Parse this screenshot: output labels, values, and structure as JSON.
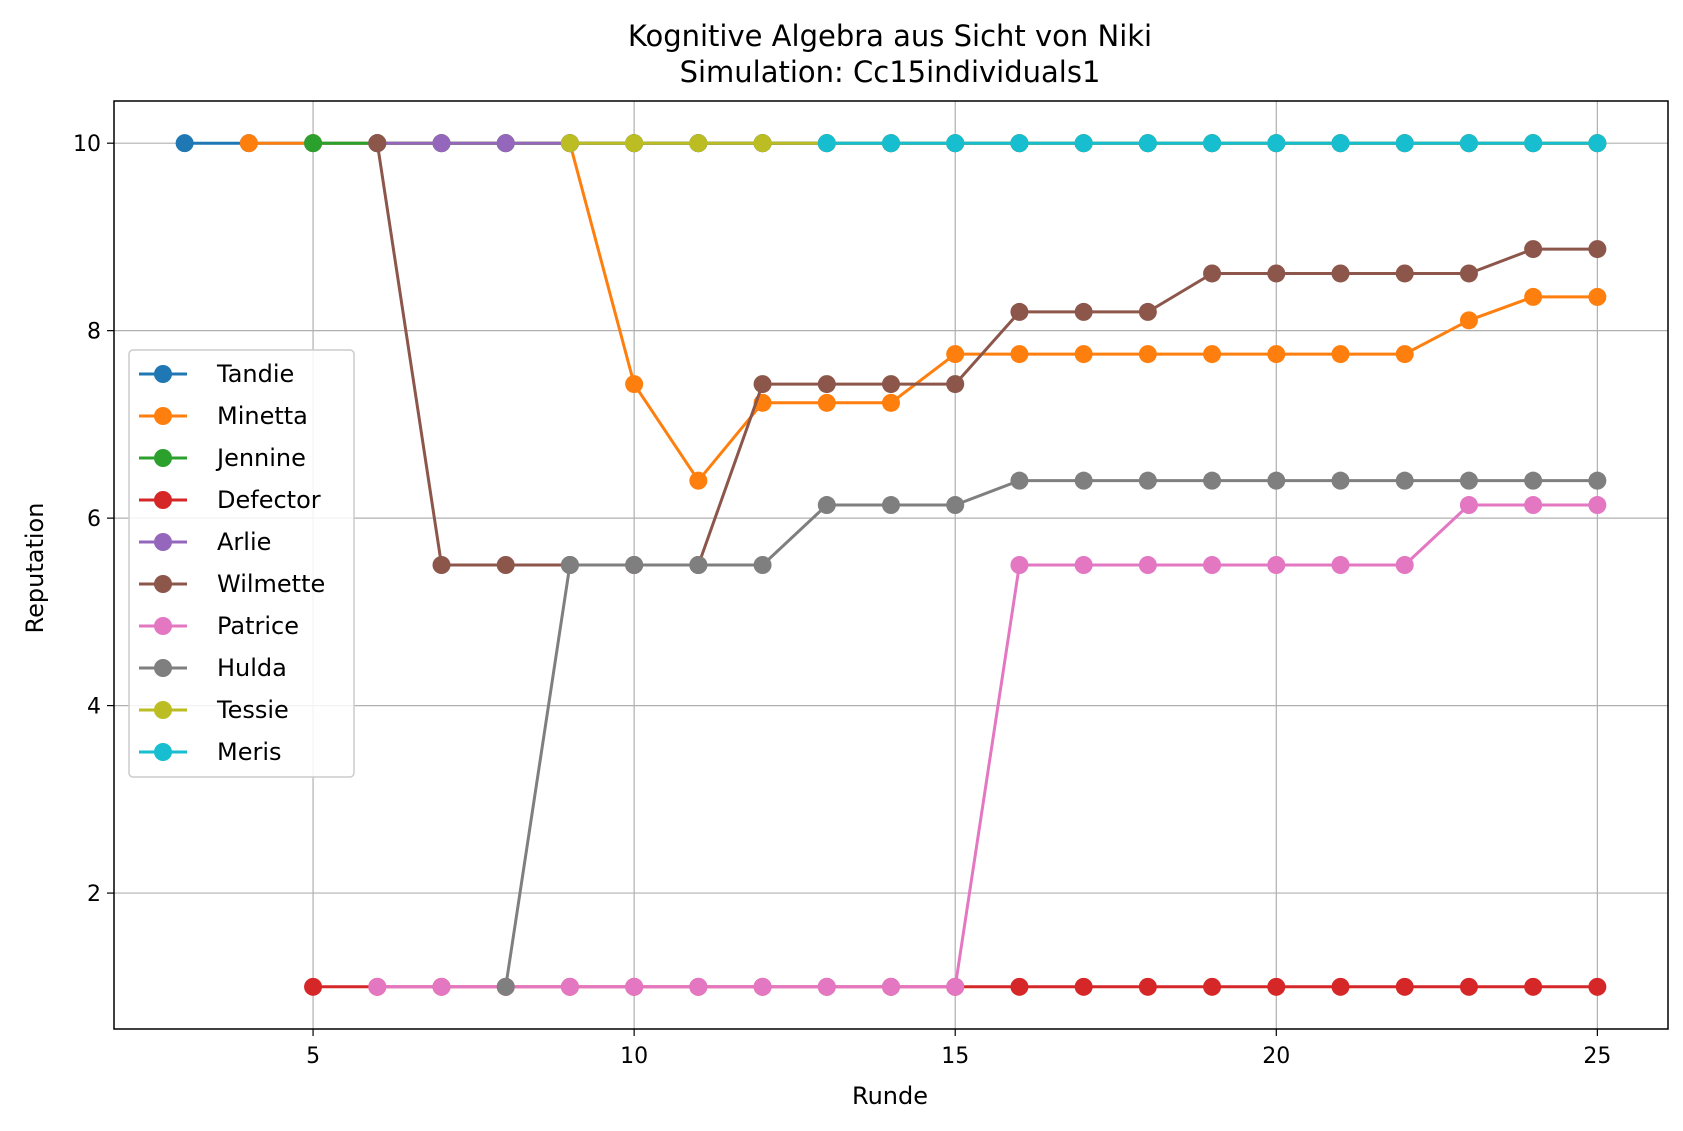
{
  "chart_data": {
    "type": "line",
    "title": "Kognitive Algebra aus Sicht von Niki",
    "subtitle": "Simulation: Cc15individuals1",
    "xlabel": "Runde",
    "ylabel": "Reputation",
    "xlim": [
      1.9,
      26.1
    ],
    "ylim": [
      0.55,
      10.45
    ],
    "xticks": [
      5,
      10,
      15,
      20,
      25
    ],
    "yticks": [
      2,
      4,
      6,
      8,
      10
    ],
    "grid": true,
    "legend_position": "center-left",
    "series": [
      {
        "name": "Tandie",
        "color": "#1f77b4",
        "x": [
          3,
          4,
          5,
          6,
          7,
          8,
          9,
          10,
          11,
          12,
          13,
          14,
          15,
          16,
          17,
          18,
          19,
          20,
          21,
          22,
          23,
          24,
          25
        ],
        "y": [
          10,
          10,
          10,
          10,
          10,
          10,
          10,
          10,
          10,
          10,
          10,
          10,
          10,
          10,
          10,
          10,
          10,
          10,
          10,
          10,
          10,
          10,
          10
        ]
      },
      {
        "name": "Minetta",
        "color": "#ff7f0e",
        "x": [
          4,
          5,
          6,
          7,
          8,
          9,
          10,
          11,
          12,
          13,
          14,
          15,
          16,
          17,
          18,
          19,
          20,
          21,
          22,
          23,
          24,
          25
        ],
        "y": [
          10,
          10,
          10,
          10,
          10,
          10,
          7.43,
          6.4,
          7.23,
          7.23,
          7.23,
          7.75,
          7.75,
          7.75,
          7.75,
          7.75,
          7.75,
          7.75,
          7.75,
          8.11,
          8.36,
          8.36
        ]
      },
      {
        "name": "Jennine",
        "color": "#2ca02c",
        "x": [
          5,
          6,
          7,
          8,
          9,
          10,
          11,
          12,
          13,
          14,
          15,
          16,
          17,
          18,
          19,
          20,
          21,
          22,
          23,
          24,
          25
        ],
        "y": [
          10,
          10,
          10,
          10,
          10,
          10,
          10,
          10,
          10,
          10,
          10,
          10,
          10,
          10,
          10,
          10,
          10,
          10,
          10,
          10,
          10
        ]
      },
      {
        "name": "Defector",
        "color": "#d62728",
        "x": [
          5,
          6,
          7,
          8,
          9,
          10,
          11,
          12,
          13,
          14,
          15,
          16,
          17,
          18,
          19,
          20,
          21,
          22,
          23,
          24,
          25
        ],
        "y": [
          1,
          1,
          1,
          1,
          1,
          1,
          1,
          1,
          1,
          1,
          1,
          1,
          1,
          1,
          1,
          1,
          1,
          1,
          1,
          1,
          1
        ]
      },
      {
        "name": "Arlie",
        "color": "#9467bd",
        "x": [
          6,
          7,
          8,
          9,
          10,
          11,
          12,
          13,
          14,
          15,
          16,
          17,
          18,
          19,
          20,
          21,
          22,
          23,
          24,
          25
        ],
        "y": [
          10,
          10,
          10,
          10,
          10,
          10,
          10,
          10,
          10,
          10,
          10,
          10,
          10,
          10,
          10,
          10,
          10,
          10,
          10,
          10
        ]
      },
      {
        "name": "Wilmette",
        "color": "#8c564b",
        "x": [
          6,
          7,
          8,
          9,
          10,
          11,
          12,
          13,
          14,
          15,
          16,
          17,
          18,
          19,
          20,
          21,
          22,
          23,
          24,
          25
        ],
        "y": [
          10,
          5.5,
          5.5,
          5.5,
          5.5,
          5.5,
          7.43,
          7.43,
          7.43,
          7.43,
          8.2,
          8.2,
          8.2,
          8.61,
          8.61,
          8.61,
          8.61,
          8.61,
          8.87,
          8.87
        ]
      },
      {
        "name": "Patrice",
        "color": "#e377c2",
        "x": [
          6,
          7,
          8,
          9,
          10,
          11,
          12,
          13,
          14,
          15,
          16,
          17,
          18,
          19,
          20,
          21,
          22,
          23,
          24,
          25
        ],
        "y": [
          1,
          1,
          1,
          1,
          1,
          1,
          1,
          1,
          1,
          1,
          5.5,
          5.5,
          5.5,
          5.5,
          5.5,
          5.5,
          5.5,
          6.14,
          6.14,
          6.14
        ]
      },
      {
        "name": "Hulda",
        "color": "#7f7f7f",
        "x": [
          8,
          9,
          10,
          11,
          12,
          13,
          14,
          15,
          16,
          17,
          18,
          19,
          20,
          21,
          22,
          23,
          24,
          25
        ],
        "y": [
          1,
          5.5,
          5.5,
          5.5,
          5.5,
          6.14,
          6.14,
          6.14,
          6.4,
          6.4,
          6.4,
          6.4,
          6.4,
          6.4,
          6.4,
          6.4,
          6.4,
          6.4
        ]
      },
      {
        "name": "Tessie",
        "color": "#bcbd22",
        "x": [
          9,
          10,
          11,
          12,
          13,
          14,
          15,
          16,
          17,
          18,
          19,
          20,
          21,
          22,
          23,
          24,
          25
        ],
        "y": [
          10,
          10,
          10,
          10,
          10,
          10,
          10,
          10,
          10,
          10,
          10,
          10,
          10,
          10,
          10,
          10,
          10
        ]
      },
      {
        "name": "Meris",
        "color": "#17becf",
        "x": [
          13,
          14,
          15,
          16,
          17,
          18,
          19,
          20,
          21,
          22,
          23,
          24,
          25
        ],
        "y": [
          10,
          10,
          10,
          10,
          10,
          10,
          10,
          10,
          10,
          10,
          10,
          10,
          10
        ]
      }
    ]
  }
}
